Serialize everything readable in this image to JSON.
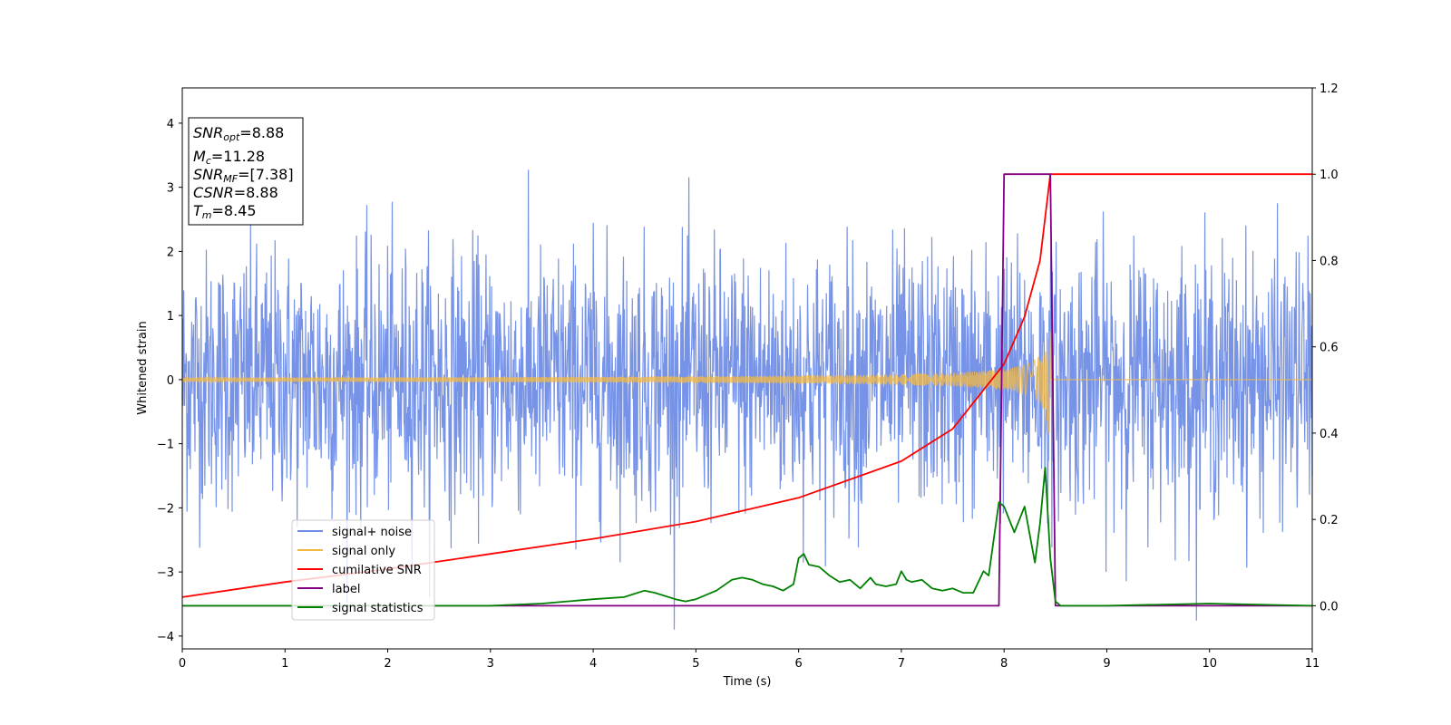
{
  "chart_data": {
    "type": "line",
    "xlabel": "Time (s)",
    "ylabel": "Whitened strain",
    "xlim": [
      0,
      11
    ],
    "ylim": [
      -4.2,
      4.55
    ],
    "ylim_right": [
      -0.1,
      1.2
    ],
    "x_ticks": [
      0,
      1,
      2,
      3,
      4,
      5,
      6,
      7,
      8,
      9,
      10,
      11
    ],
    "x_tick_labels": [
      "0",
      "1",
      "2",
      "3",
      "4",
      "5",
      "6",
      "7",
      "8",
      "9",
      "10",
      "11"
    ],
    "y_ticks": [
      -4,
      -3,
      -2,
      -1,
      0,
      1,
      2,
      3,
      4
    ],
    "y_tick_labels": [
      "−4",
      "−3",
      "−2",
      "−1",
      "0",
      "1",
      "2",
      "3",
      "4"
    ],
    "y2_ticks": [
      0.0,
      0.2,
      0.4,
      0.6,
      0.8,
      1.0,
      1.2
    ],
    "y2_tick_labels": [
      "0.0",
      "0.2",
      "0.4",
      "0.6",
      "0.8",
      "1.0",
      "1.2"
    ],
    "grid": false,
    "legend_position": "lower-left",
    "stats_box": {
      "snr_opt": {
        "main": "SNR",
        "sub": "opt",
        "value": "=8.88"
      },
      "mc": {
        "main": "M",
        "sub": "c",
        "value": "=11.28"
      },
      "snr_mf": {
        "main": "SNR",
        "sub": "MF",
        "value": "=[7.38]"
      },
      "csnr": {
        "main": "CSNR",
        "sub": "",
        "value": "=8.88"
      },
      "tm": {
        "main": "T",
        "sub": "m",
        "value": "=8.45"
      }
    },
    "series": [
      {
        "name": "signal+ noise",
        "axis": "left",
        "color": "#6f8de6",
        "description_values": "whitened noise, approx. ±2.3 typical, peaks to ±4",
        "noise_sigma": 1.0
      },
      {
        "name": "signal only",
        "axis": "left",
        "color": "#f5b942",
        "chirp_start_amplitude": 0.03,
        "chirp_end_amplitude": 0.9,
        "chirp_merger_time": 8.45
      },
      {
        "name": "cumilative SNR",
        "axis": "right",
        "color": "#ff0000",
        "x": [
          0,
          1,
          2,
          3,
          4,
          5,
          6,
          7,
          7.5,
          8,
          8.2,
          8.35,
          8.45,
          8.5,
          11
        ],
        "y": [
          0.02,
          0.055,
          0.085,
          0.12,
          0.155,
          0.195,
          0.25,
          0.335,
          0.41,
          0.56,
          0.67,
          0.8,
          1.0,
          1.0,
          1.0
        ]
      },
      {
        "name": "label",
        "axis": "right",
        "color": "#800080",
        "x": [
          0,
          7.95,
          8.0,
          8.45,
          8.5,
          11
        ],
        "y": [
          0,
          0,
          1,
          1,
          0,
          0
        ]
      },
      {
        "name": "signal statistics",
        "axis": "right",
        "color": "#008000",
        "x": [
          0,
          1,
          2,
          3,
          3.5,
          4,
          4.3,
          4.5,
          4.6,
          4.8,
          4.9,
          5.0,
          5.2,
          5.35,
          5.45,
          5.55,
          5.65,
          5.75,
          5.85,
          5.95,
          6.0,
          6.05,
          6.1,
          6.2,
          6.3,
          6.4,
          6.5,
          6.6,
          6.7,
          6.75,
          6.85,
          6.95,
          7.0,
          7.05,
          7.1,
          7.2,
          7.3,
          7.4,
          7.5,
          7.6,
          7.7,
          7.8,
          7.85,
          7.95,
          8.0,
          8.05,
          8.1,
          8.2,
          8.3,
          8.35,
          8.4,
          8.45,
          8.5,
          8.55,
          9,
          10,
          11
        ],
        "y": [
          0.0,
          0.0,
          0.0,
          0.0,
          0.005,
          0.015,
          0.02,
          0.035,
          0.03,
          0.015,
          0.01,
          0.015,
          0.035,
          0.06,
          0.065,
          0.06,
          0.05,
          0.045,
          0.035,
          0.05,
          0.11,
          0.12,
          0.095,
          0.09,
          0.07,
          0.055,
          0.06,
          0.04,
          0.065,
          0.05,
          0.045,
          0.05,
          0.08,
          0.06,
          0.055,
          0.06,
          0.04,
          0.035,
          0.04,
          0.03,
          0.03,
          0.08,
          0.07,
          0.24,
          0.23,
          0.2,
          0.17,
          0.23,
          0.1,
          0.19,
          0.32,
          0.11,
          0.01,
          0.0,
          0.0,
          0.005,
          0.0
        ]
      }
    ]
  }
}
